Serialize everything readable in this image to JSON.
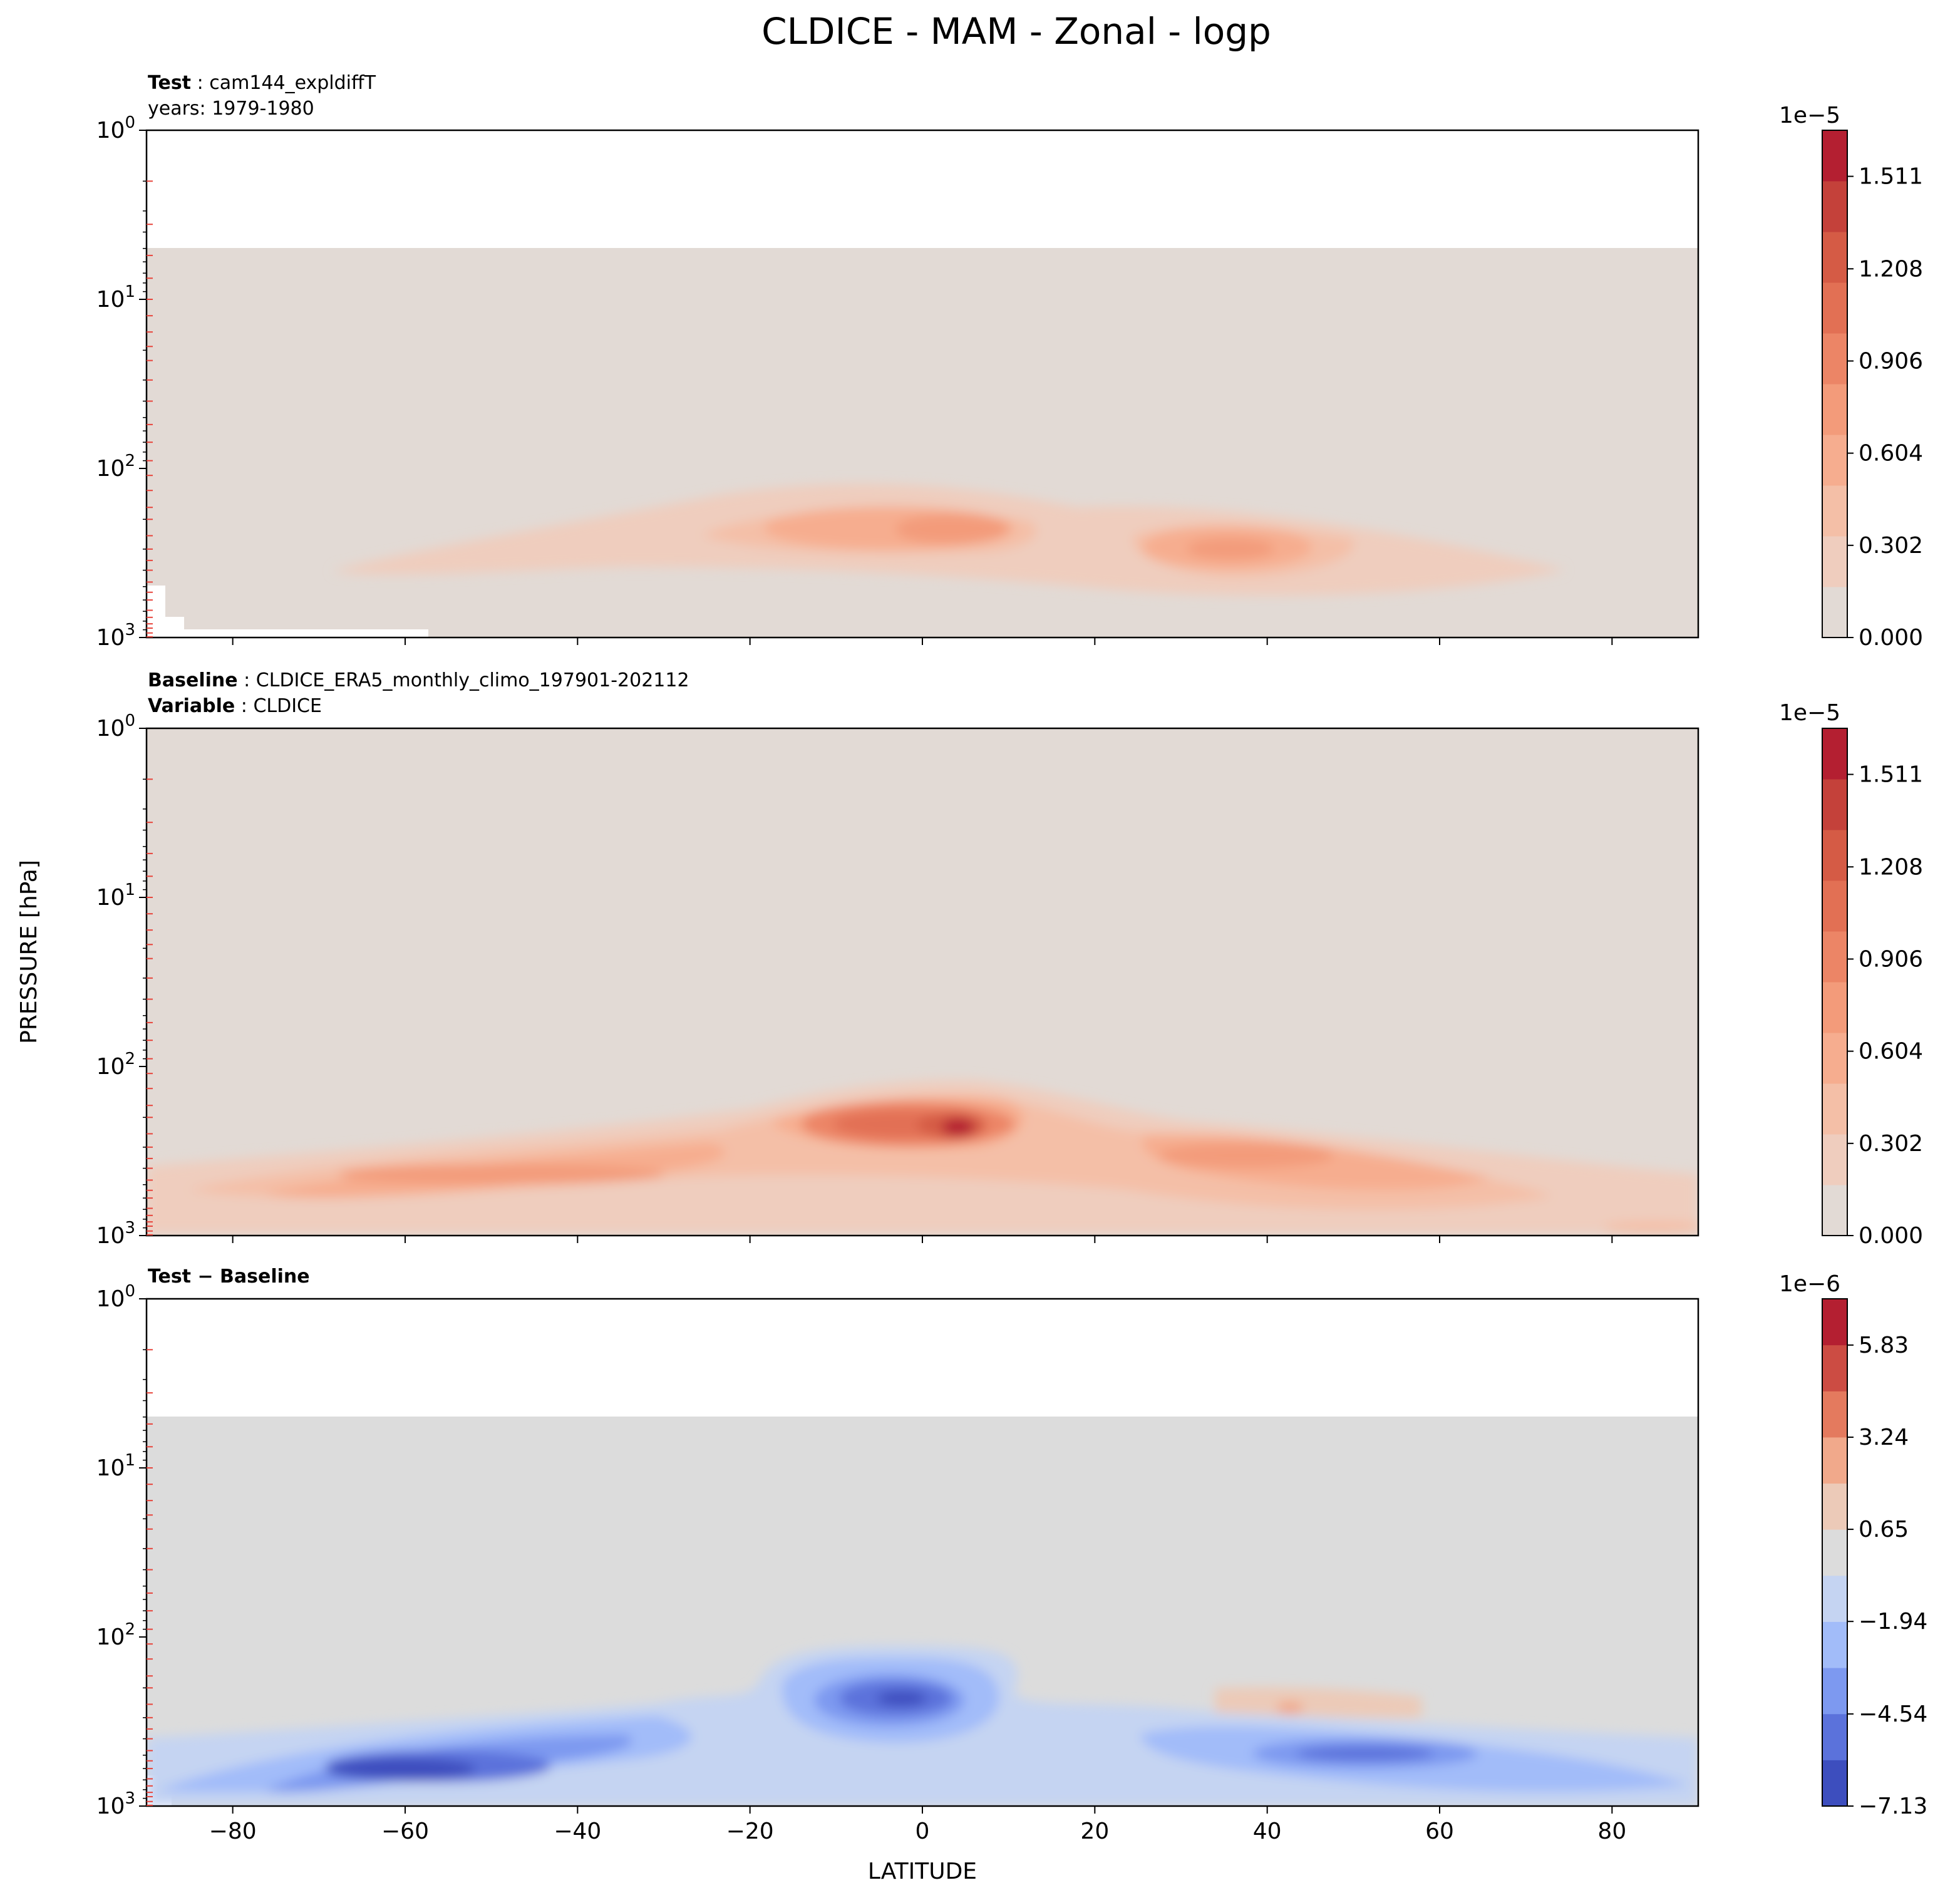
{
  "figure": {
    "title": "CLDICE - MAM - Zonal - logp",
    "ylabel": "PRESSURE [hPa]",
    "xlabel": "LATITUDE"
  },
  "colors": {
    "background_fill_panels_1_2": "#e2dad5",
    "background_fill_panel_3": "#dcdcdc",
    "frame": "#000000",
    "level_tick": "#e8453c"
  },
  "chart_data": [
    {
      "type": "heatmap",
      "panel": "Test",
      "label_bold": "Test",
      "label_text": "cam144_expldiffT",
      "label_line2": "years: 1979-1980",
      "x_ticks": [
        "−80",
        "−60",
        "−40",
        "−20",
        "0",
        "20",
        "40",
        "60",
        "80"
      ],
      "xlim": [
        -90,
        90
      ],
      "y_scale": "log",
      "y_inverted": true,
      "ylim": [
        1,
        1000
      ],
      "y_ticks": [
        "10^0",
        "10^1",
        "10^2",
        "10^3"
      ],
      "data_top_hPa": 5,
      "colorbar": {
        "scale_label": "1e−5",
        "ticks": [
          "1.511",
          "1.208",
          "0.906",
          "0.604",
          "0.302",
          "0.000"
        ],
        "vmin": 0.0,
        "vmax": 1.662,
        "colors": [
          "#e2dad5",
          "#efcdbe",
          "#f4bfa7",
          "#f6ad8f",
          "#f39b7a",
          "#ec8566",
          "#e27054",
          "#d55b45",
          "#c4413a",
          "#b41f31"
        ]
      },
      "features": [
        {
          "name": "tropical maximum",
          "lat": 5,
          "pressure_hPa": 240,
          "value": 0.75
        },
        {
          "name": "northern midlatitude maximum",
          "lat": 36,
          "pressure_hPa": 320,
          "value": 0.75
        },
        {
          "name": "southern hemisphere band",
          "lat": -45,
          "pressure_hPa": 380,
          "value": 0.2
        }
      ]
    },
    {
      "type": "heatmap",
      "panel": "Baseline",
      "label_bold": "Baseline",
      "label_text": "CLDICE_ERA5_monthly_climo_197901-202112",
      "label_bold_2": "Variable",
      "label_text_2": "CLDICE",
      "x_ticks": [
        "−80",
        "−60",
        "−40",
        "−20",
        "0",
        "20",
        "40",
        "60",
        "80"
      ],
      "xlim": [
        -90,
        90
      ],
      "y_scale": "log",
      "y_inverted": true,
      "ylim": [
        1,
        1000
      ],
      "y_ticks": [
        "10^0",
        "10^1",
        "10^2",
        "10^3"
      ],
      "colorbar": {
        "scale_label": "1e−5",
        "ticks": [
          "1.511",
          "1.208",
          "0.906",
          "0.604",
          "0.302",
          "0.000"
        ],
        "vmin": 0.0,
        "vmax": 1.662,
        "colors": [
          "#e2dad5",
          "#efcdbe",
          "#f4bfa7",
          "#f6ad8f",
          "#f39b7a",
          "#ec8566",
          "#e27054",
          "#d55b45",
          "#c4413a",
          "#b41f31"
        ]
      },
      "features": [
        {
          "name": "tropical maximum",
          "lat": 5,
          "pressure_hPa": 240,
          "value": 1.6
        },
        {
          "name": "northern midlatitude maximum",
          "lat": 40,
          "pressure_hPa": 380,
          "value": 0.9
        },
        {
          "name": "southern midlatitude maximum",
          "lat": -55,
          "pressure_hPa": 500,
          "value": 0.75
        }
      ]
    },
    {
      "type": "heatmap",
      "panel": "Test − Baseline",
      "label_bold": "Test − Baseline",
      "x_ticks": [
        "−80",
        "−60",
        "−40",
        "−20",
        "0",
        "20",
        "40",
        "60",
        "80"
      ],
      "xlim": [
        -90,
        90
      ],
      "y_scale": "log",
      "y_inverted": true,
      "ylim": [
        1,
        1000
      ],
      "y_ticks": [
        "10^0",
        "10^1",
        "10^2",
        "10^3"
      ],
      "data_top_hPa": 5,
      "colorbar": {
        "scale_label": "1e−6",
        "ticks": [
          "5.83",
          "3.24",
          "0.65",
          "−1.94",
          "−4.54",
          "−7.13"
        ],
        "vmin": -7.13,
        "vmax": 7.13,
        "colors": [
          "#3d4ebe",
          "#5b72db",
          "#7d99f0",
          "#a2bcf9",
          "#c5d4f2",
          "#dcdcdc",
          "#eccab8",
          "#f1a98b",
          "#e47a5e",
          "#cc4c43",
          "#b41f31"
        ]
      },
      "features": [
        {
          "name": "southern midlatitude deficit",
          "lat": -60,
          "pressure_hPa": 500,
          "value": -6.5
        },
        {
          "name": "tropical deficit",
          "lat": 0,
          "pressure_hPa": 240,
          "value": -7.0
        },
        {
          "name": "northern midlatitude deficit",
          "lat": 45,
          "pressure_hPa": 480,
          "value": -4.0
        },
        {
          "name": "northern upper positive difference",
          "lat": 45,
          "pressure_hPa": 280,
          "value": 1.5
        }
      ]
    }
  ]
}
